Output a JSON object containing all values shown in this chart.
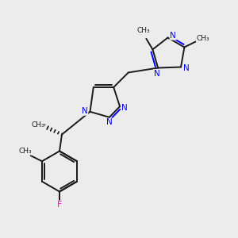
{
  "background_color": "#ececec",
  "bond_color": "#1a1a1a",
  "N_color": "#0000ff",
  "F_color": "#ff00cc",
  "line_width": 1.4,
  "font_size": 7.5,
  "fig_size": [
    3.0,
    3.0
  ],
  "dpi": 100,
  "xlim": [
    0,
    10
  ],
  "ylim": [
    0,
    10
  ]
}
